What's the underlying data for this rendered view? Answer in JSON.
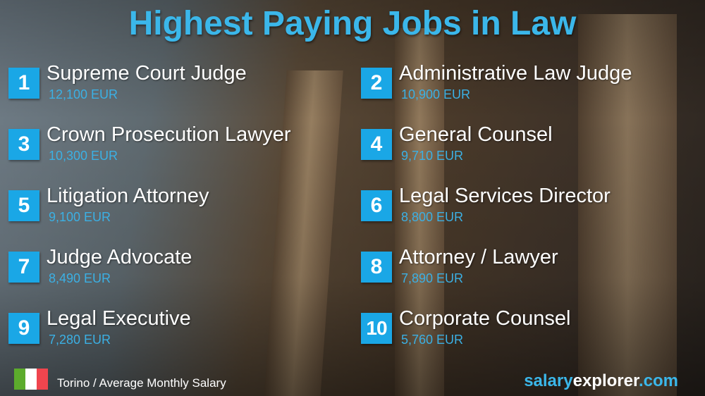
{
  "title": "Highest Paying Jobs in Law",
  "jobs": [
    {
      "rank": "1",
      "name": "Supreme Court Judge",
      "salary": "12,100 EUR"
    },
    {
      "rank": "2",
      "name": "Administrative Law Judge",
      "salary": "10,900 EUR"
    },
    {
      "rank": "3",
      "name": "Crown Prosecution Lawyer",
      "salary": "10,300 EUR"
    },
    {
      "rank": "4",
      "name": "General Counsel",
      "salary": "9,710 EUR"
    },
    {
      "rank": "5",
      "name": "Litigation Attorney",
      "salary": "9,100 EUR"
    },
    {
      "rank": "6",
      "name": "Legal Services Director",
      "salary": "8,800 EUR"
    },
    {
      "rank": "7",
      "name": "Judge Advocate",
      "salary": "8,490 EUR"
    },
    {
      "rank": "8",
      "name": "Attorney / Lawyer",
      "salary": "7,890 EUR"
    },
    {
      "rank": "9",
      "name": "Legal Executive",
      "salary": "7,280 EUR"
    },
    {
      "rank": "10",
      "name": "Corporate Counsel",
      "salary": "5,760 EUR"
    }
  ],
  "footer": {
    "flag": "italy-flag",
    "flag_colors": [
      "#5cab2c",
      "#ffffff",
      "#f0454e"
    ],
    "location": "Torino / Average Monthly Salary",
    "brand_part1": "salary",
    "brand_part2": "explorer",
    "brand_part3": ".com"
  },
  "colors": {
    "accent": "#1aa7e6",
    "salary_text": "#3bb0e4"
  }
}
